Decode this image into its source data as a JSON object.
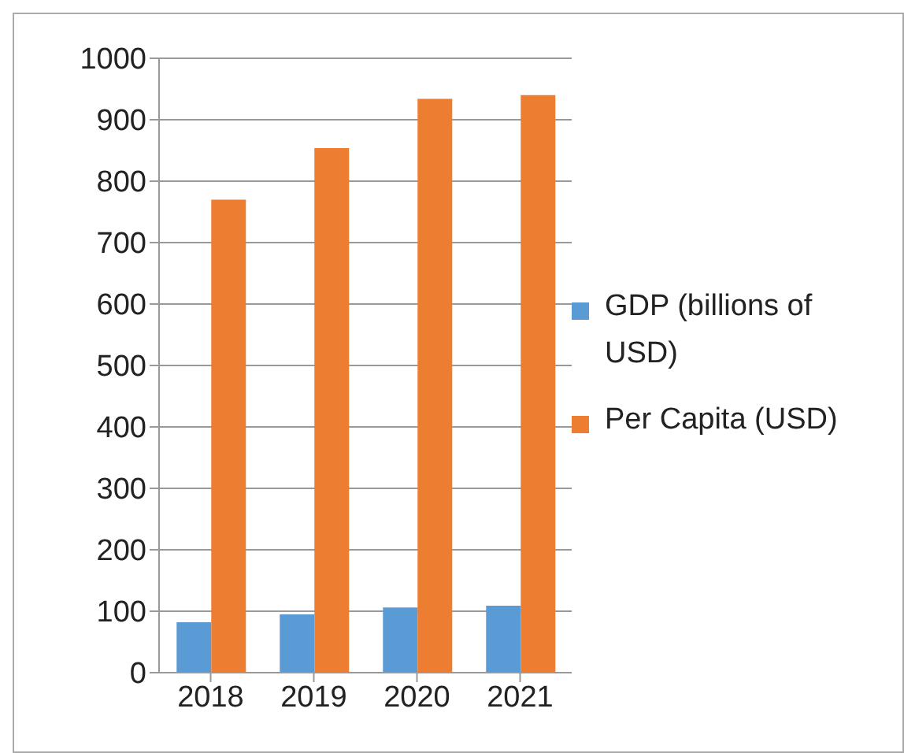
{
  "chart_data": {
    "type": "bar",
    "categories": [
      "2018",
      "2019",
      "2020",
      "2021"
    ],
    "series": [
      {
        "name": "GDP (billions of USD)",
        "color": "#5b9bd5",
        "values": [
          82,
          95,
          106,
          109
        ]
      },
      {
        "name": "Per Capita (USD)",
        "color": "#ed7d31",
        "values": [
          770,
          854,
          934,
          940
        ]
      }
    ],
    "ylim": [
      0,
      1000
    ],
    "yticks": [
      0,
      100,
      200,
      300,
      400,
      500,
      600,
      700,
      800,
      900,
      1000
    ],
    "grid": "y",
    "legend": "right"
  }
}
